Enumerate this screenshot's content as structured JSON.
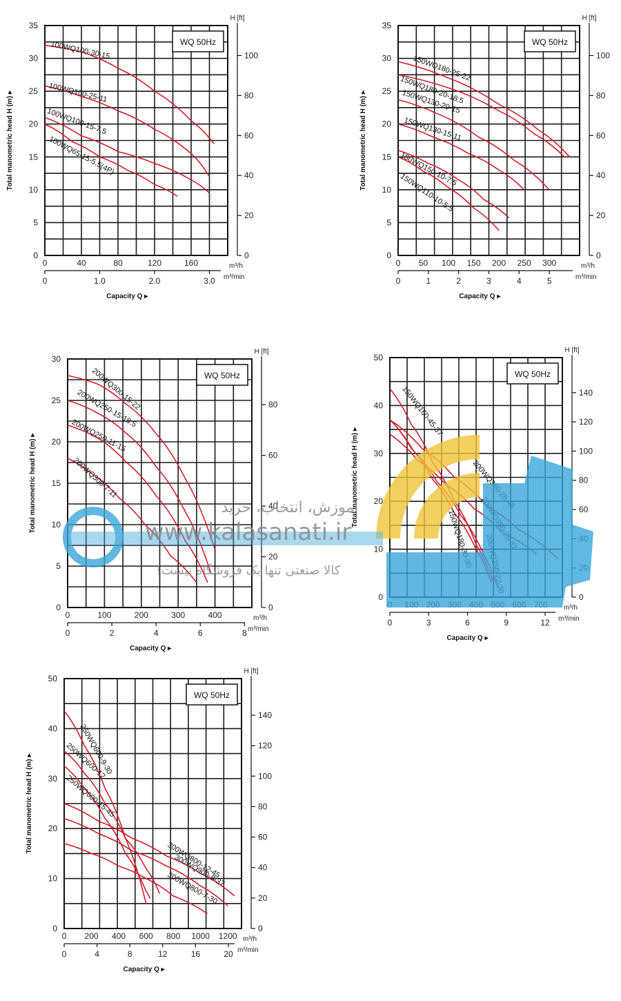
{
  "colors": {
    "curve": "#d01f2a",
    "grid": "#1a1a1a",
    "watermark_blue": "#3aa6d9",
    "watermark_yellow": "#f0c43a"
  },
  "watermark": {
    "line1": "آموزش، انتخاب، خرید",
    "url": "www.kalasanati.ir",
    "line3": "کالا صنعتی تنها یک فروشگاه نیست!"
  },
  "chart_data": [
    {
      "type": "line",
      "legend": "WQ 50Hz",
      "ylabel": "Total manometric head H (m)",
      "xlabel": "Capacity Q",
      "y_ticks": [
        0,
        5,
        10,
        15,
        20,
        25,
        30,
        35
      ],
      "ylim": [
        0,
        35
      ],
      "y2_unit": "H [ft]",
      "y2_ticks": [
        0,
        20,
        40,
        60,
        80,
        100
      ],
      "x_ticks": [
        0,
        40,
        80,
        120,
        160
      ],
      "xlim": [
        0,
        200
      ],
      "x_unit": "m³/h",
      "x2_ticks": [
        "0",
        "1.0",
        "2.0",
        "3.0"
      ],
      "x2_unit": "m³/min",
      "series": [
        {
          "name": "100WQ100-30-15",
          "x": [
            0,
            40,
            80,
            120,
            160,
            185
          ],
          "y": [
            32,
            31,
            28.5,
            25,
            20.5,
            17
          ]
        },
        {
          "name": "100WQ100-25-11",
          "x": [
            0,
            40,
            80,
            120,
            160,
            180
          ],
          "y": [
            25.8,
            24.2,
            22,
            19.2,
            15.5,
            12
          ]
        },
        {
          "name": "100WQ100-15-7.5",
          "x": [
            0,
            40,
            80,
            120,
            160,
            180
          ],
          "y": [
            21,
            18.2,
            15.8,
            14,
            11.5,
            9.5
          ]
        },
        {
          "name": "100WQ65-15-5.5(4P)",
          "x": [
            0,
            30,
            60,
            90,
            120,
            145
          ],
          "y": [
            20,
            17.3,
            15,
            13,
            10.8,
            9
          ]
        }
      ]
    },
    {
      "type": "line",
      "legend": "WQ 50Hz",
      "ylabel": "Total manometric head H (m)",
      "xlabel": "Capacity Q",
      "y_ticks": [
        0,
        5,
        10,
        15,
        20,
        25,
        30,
        35
      ],
      "ylim": [
        0,
        35
      ],
      "y2_unit": "H [ft]",
      "y2_ticks": [
        0,
        20,
        40,
        60,
        80,
        100
      ],
      "x_ticks": [
        0,
        50,
        100,
        150,
        200,
        250,
        300
      ],
      "xlim": [
        0,
        360
      ],
      "x_unit": "m³/h",
      "x2_ticks": [
        "0",
        "1",
        "2",
        "3",
        "4",
        "5"
      ],
      "x2_unit": "m³/min",
      "series": [
        {
          "name": "150WQ180-25-22",
          "x": [
            0,
            100,
            200,
            280,
            340
          ],
          "y": [
            29.5,
            27,
            23,
            19,
            15
          ]
        },
        {
          "name": "150WQ180-20-18.5",
          "x": [
            0,
            100,
            200,
            270,
            330
          ],
          "y": [
            27.5,
            25.5,
            22,
            18.5,
            15
          ]
        },
        {
          "name": "150WQ130-20-15",
          "x": [
            0,
            80,
            160,
            230,
            300
          ],
          "y": [
            23.7,
            21.5,
            18,
            14.5,
            10
          ]
        },
        {
          "name": "150WQ130-15-11",
          "x": [
            0,
            70,
            140,
            200,
            250
          ],
          "y": [
            20,
            18,
            15.5,
            13,
            10
          ]
        },
        {
          "name": "150WQ150-10-7.5",
          "x": [
            0,
            60,
            120,
            170,
            220
          ],
          "y": [
            16,
            14,
            11.5,
            8.5,
            5.7
          ]
        },
        {
          "name": "150WQ110-10-5.5",
          "x": [
            0,
            50,
            100,
            150,
            200
          ],
          "y": [
            15,
            12.8,
            10.3,
            7.2,
            3.8
          ]
        }
      ]
    },
    {
      "type": "line",
      "legend": "WQ 50Hz",
      "ylabel": "Total manometric head H (m)",
      "xlabel": "Capacity Q",
      "y_ticks": [
        0,
        5,
        10,
        15,
        20,
        25,
        30
      ],
      "ylim": [
        0,
        30
      ],
      "y2_unit": "H [ft]",
      "y2_ticks": [
        0,
        20,
        40,
        60,
        80
      ],
      "x_ticks": [
        0,
        100,
        200,
        300,
        400
      ],
      "xlim": [
        0,
        500
      ],
      "x_unit": "m³/h",
      "x2_ticks": [
        "0",
        "2",
        "4",
        "6",
        "8"
      ],
      "x2_unit": "m³/min",
      "series": [
        {
          "name": "200WQ300-15-22",
          "x": [
            0,
            80,
            160,
            240,
            320,
            400
          ],
          "y": [
            28,
            27,
            24.5,
            21,
            15.5,
            7
          ]
        },
        {
          "name": "200WQ250-15-18.5",
          "x": [
            0,
            80,
            160,
            240,
            320,
            390
          ],
          "y": [
            25,
            23.5,
            21,
            17,
            11.5,
            4
          ]
        },
        {
          "name": "200WQ250-11-15",
          "x": [
            0,
            80,
            160,
            240,
            320,
            380
          ],
          "y": [
            22,
            20.5,
            17.5,
            13.5,
            8,
            3
          ]
        },
        {
          "name": "200WQ300-7-11",
          "x": [
            0,
            70,
            140,
            210,
            280,
            350
          ],
          "y": [
            18,
            16,
            13.2,
            10,
            6.2,
            3
          ]
        }
      ]
    },
    {
      "type": "line",
      "legend": "WQ 50Hz",
      "ylabel": "Total manometric head H (m)",
      "xlabel": "Capacity Q",
      "y_ticks": [
        0,
        10,
        20,
        30,
        40,
        50
      ],
      "ylim": [
        0,
        50
      ],
      "y2_unit": "H [ft]",
      "y2_ticks": [
        0,
        20,
        40,
        60,
        80,
        100,
        120,
        140
      ],
      "x_ticks": [
        0,
        100,
        200,
        300,
        400,
        500,
        600,
        700
      ],
      "xlim": [
        0,
        800
      ],
      "x_unit": "m³/h",
      "x2_ticks": [
        "0",
        "3",
        "6",
        "9",
        "12"
      ],
      "x2_unit": "m³/min",
      "series": [
        {
          "name": "150WQ160-45-37",
          "x": [
            0,
            100,
            200,
            300,
            400,
            480
          ],
          "y": [
            43.5,
            36,
            28,
            20,
            11,
            3
          ]
        },
        {
          "name": "200WQ380-28-45",
          "x": [
            0,
            150,
            300,
            450,
            600,
            780
          ],
          "y": [
            37,
            31,
            25,
            19,
            14,
            8
          ]
        },
        {
          "name": "200WQ350-25-37",
          "x": [
            0,
            130,
            260,
            390,
            520,
            680
          ],
          "y": [
            34,
            28.5,
            23.5,
            18.5,
            13.5,
            9
          ]
        },
        {
          "name": "150WQ180-30-30",
          "x": [
            0,
            100,
            200,
            300,
            400,
            470
          ],
          "y": [
            37,
            31,
            24.5,
            17.5,
            10,
            3
          ]
        },
        {
          "name": "200WQ250-22-30",
          "x": [
            0,
            110,
            220,
            330,
            440,
            500
          ],
          "y": [
            37,
            30.5,
            24,
            17,
            8.5,
            2
          ]
        }
      ]
    },
    {
      "type": "line",
      "legend": "WQ 50Hz",
      "ylabel": "Total manometric head H (m)",
      "xlabel": "Capacity Q",
      "y_ticks": [
        0,
        10,
        20,
        30,
        40,
        50
      ],
      "ylim": [
        0,
        50
      ],
      "y2_unit": "H [ft]",
      "y2_ticks": [
        0,
        20,
        40,
        60,
        80,
        100,
        120,
        140
      ],
      "x_ticks": [
        0,
        200,
        400,
        600,
        800,
        1000,
        1200
      ],
      "xlim": [
        0,
        1300
      ],
      "x_unit": "m³/h",
      "x2_ticks": [
        "0",
        "4",
        "8",
        "12",
        "16",
        "20"
      ],
      "x2_unit": "m³/min",
      "series": [
        {
          "name": "250WQ600-9-30",
          "x": [
            0,
            150,
            300,
            450,
            600
          ],
          "y": [
            43.5,
            36.5,
            28,
            18,
            5
          ]
        },
        {
          "name": "250WQ600-12",
          "x": [
            0,
            150,
            300,
            450,
            600,
            700
          ],
          "y": [
            35.5,
            31,
            25,
            18,
            12,
            7
          ]
        },
        {
          "name": "250WQ600-15-45",
          "x": [
            0,
            150,
            300,
            450,
            600,
            630
          ],
          "y": [
            32.5,
            28,
            22,
            15,
            7.5,
            6
          ]
        },
        {
          "name": "300WQ800-12-45",
          "x": [
            0,
            250,
            500,
            750,
            1000,
            1250
          ],
          "y": [
            25,
            21.5,
            18,
            14.5,
            11,
            6.5
          ]
        },
        {
          "name": "300WQ900-8-37",
          "x": [
            0,
            250,
            500,
            750,
            1000,
            1200
          ],
          "y": [
            22,
            19,
            15.5,
            12.5,
            8.5,
            4.5
          ]
        },
        {
          "name": "300WQ800-7-30",
          "x": [
            0,
            200,
            400,
            600,
            800,
            1050
          ],
          "y": [
            17,
            15,
            12.5,
            10,
            6.5,
            3
          ]
        }
      ]
    }
  ]
}
